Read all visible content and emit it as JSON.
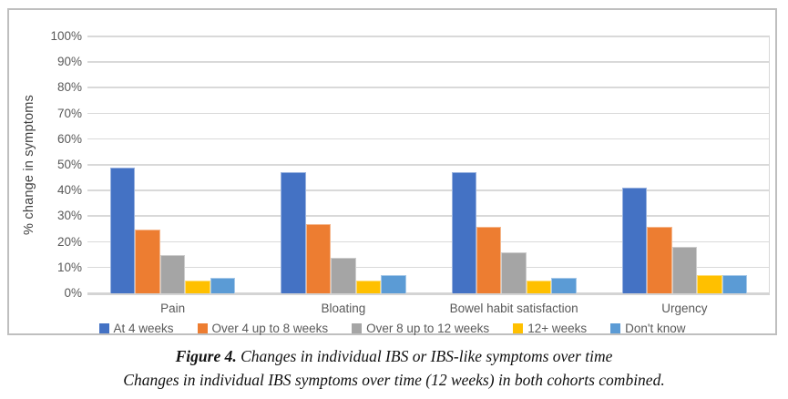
{
  "chart_data": {
    "type": "bar",
    "title": "",
    "xlabel": "",
    "ylabel": "% change in symptoms",
    "ylim": [
      0,
      100
    ],
    "y_tick_step": 10,
    "y_tick_labels": [
      "100%",
      "90%",
      "80%",
      "70%",
      "60%",
      "50%",
      "40%",
      "30%",
      "20%",
      "10%",
      "0%"
    ],
    "grid": true,
    "legend_position": "bottom",
    "categories": [
      "Pain",
      "Bloating",
      "Bowel habit satisfaction",
      "Urgency"
    ],
    "series": [
      {
        "name": "At 4 weeks",
        "color": "#4472C4",
        "values": [
          49,
          47,
          47,
          41
        ]
      },
      {
        "name": "Over 4 up to 8 weeks",
        "color": "#ED7D31",
        "values": [
          25,
          27,
          26,
          26
        ]
      },
      {
        "name": "Over 8 up to 12 weeks",
        "color": "#A5A5A5",
        "values": [
          15,
          14,
          16,
          18
        ]
      },
      {
        "name": "12+ weeks",
        "color": "#FFC000",
        "values": [
          5,
          5,
          5,
          7
        ]
      },
      {
        "name": "Don't know",
        "color": "#5B9BD5",
        "values": [
          6,
          7,
          6,
          7
        ]
      }
    ],
    "colors": {
      "gridline": "#D9D9D9",
      "axis_text": "#595959",
      "axis_title_text": "#404040",
      "chart_border": "#BFBFBF"
    }
  },
  "caption": {
    "line1_prefix": "Figure 4.",
    "line1_rest": " Changes in individual IBS or IBS-like symptoms over time",
    "line2": "Changes in individual IBS symptoms over time (12 weeks) in both cohorts combined."
  }
}
